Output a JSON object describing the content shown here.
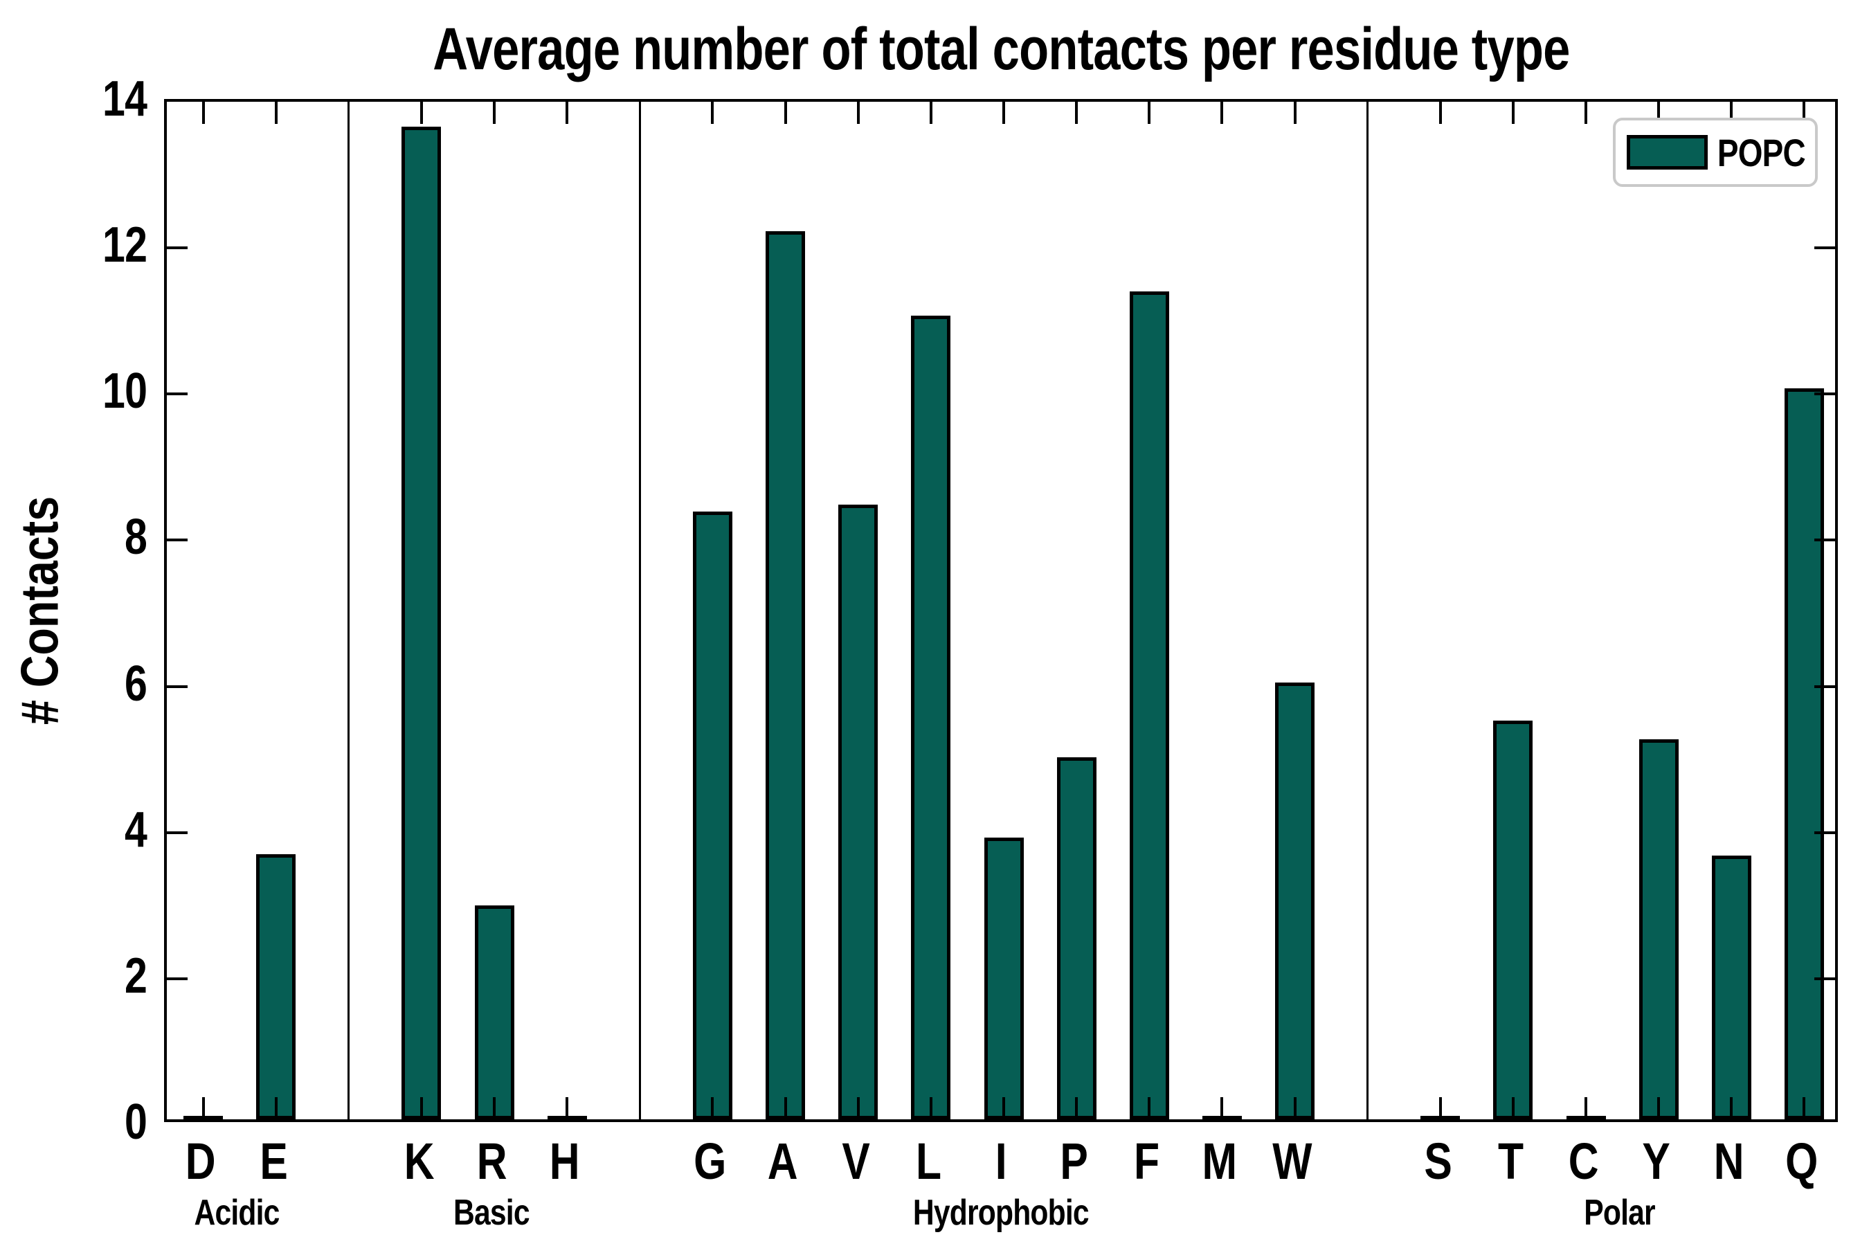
{
  "chart_data": {
    "type": "bar",
    "title": "Average number of total contacts per residue type",
    "ylabel": "# Contacts",
    "ylim": [
      0,
      14
    ],
    "yticks": [
      "0",
      "2",
      "4",
      "6",
      "8",
      "10",
      "12",
      "14"
    ],
    "grid": false,
    "bar_color": "#065E54",
    "bar_edge_color": "#000000",
    "legend": {
      "label": "POPC",
      "position": "upper right"
    },
    "categories": [
      "D",
      "E",
      "K",
      "R",
      "H",
      "G",
      "A",
      "V",
      "L",
      "I",
      "P",
      "F",
      "M",
      "W",
      "S",
      "T",
      "C",
      "Y",
      "N",
      "Q"
    ],
    "values": [
      0.03,
      3.63,
      13.58,
      2.93,
      0.03,
      8.32,
      12.15,
      8.41,
      11.0,
      3.86,
      4.95,
      11.33,
      0.03,
      5.98,
      0.03,
      5.46,
      0.03,
      5.2,
      3.61,
      10.0
    ],
    "groups": [
      {
        "label": "Acidic",
        "categories": [
          "D",
          "E"
        ],
        "values": [
          0.03,
          3.63
        ]
      },
      {
        "label": "Basic",
        "categories": [
          "K",
          "R",
          "H"
        ],
        "values": [
          13.58,
          2.93,
          0.03
        ]
      },
      {
        "label": "Hydrophobic",
        "categories": [
          "G",
          "A",
          "V",
          "L",
          "I",
          "P",
          "F",
          "M",
          "W"
        ],
        "values": [
          8.32,
          12.15,
          8.41,
          11.0,
          3.86,
          4.95,
          11.33,
          0.03,
          5.98
        ]
      },
      {
        "label": "Polar",
        "categories": [
          "S",
          "T",
          "C",
          "Y",
          "N",
          "Q"
        ],
        "values": [
          0.03,
          5.46,
          0.03,
          5.2,
          3.61,
          10.0
        ]
      }
    ]
  }
}
